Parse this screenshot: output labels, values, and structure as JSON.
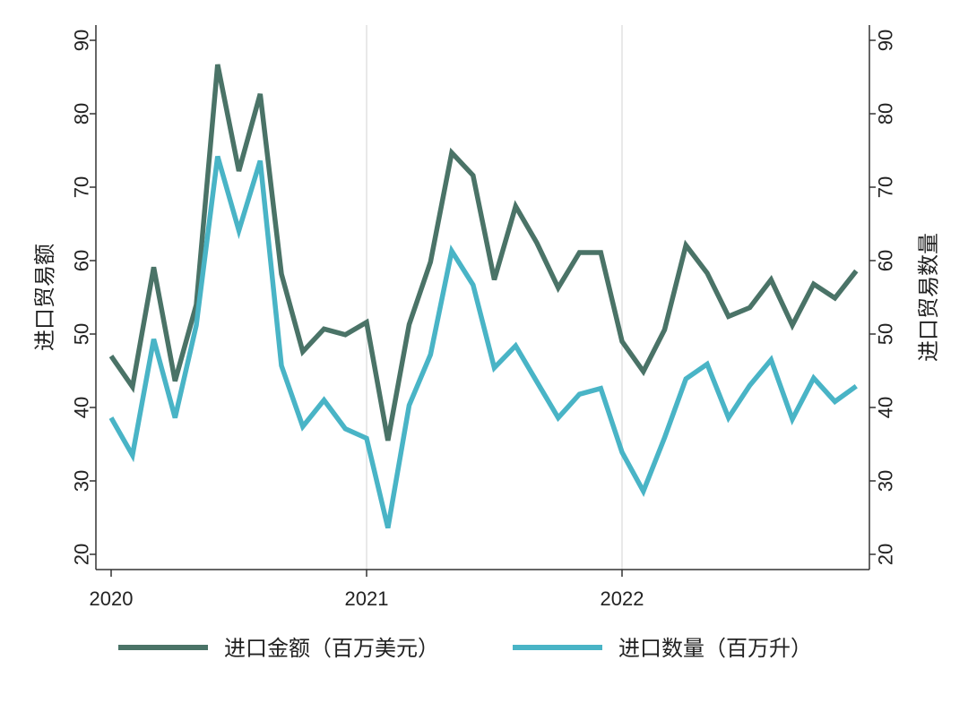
{
  "chart_data": {
    "type": "line",
    "ylabel_left": "进口贸易额",
    "ylabel_right": "进口贸易数量",
    "ylim": [
      20,
      90
    ],
    "yticks": [
      "20",
      "30",
      "40",
      "50",
      "60",
      "70",
      "80",
      "90"
    ],
    "xticks": [
      "2020",
      "2021",
      "2022"
    ],
    "grid": "vertical at year boundaries",
    "legend_position": "bottom",
    "x": [
      "2020-01",
      "2020-02",
      "2020-03",
      "2020-04",
      "2020-05",
      "2020-06",
      "2020-07",
      "2020-08",
      "2020-09",
      "2020-10",
      "2020-11",
      "2020-12",
      "2021-01",
      "2021-02",
      "2021-03",
      "2021-04",
      "2021-05",
      "2021-06",
      "2021-07",
      "2021-08",
      "2021-09",
      "2021-10",
      "2021-11",
      "2021-12",
      "2022-01",
      "2022-02",
      "2022-03",
      "2022-04",
      "2022-05",
      "2022-06",
      "2022-07",
      "2022-08",
      "2022-09",
      "2022-10",
      "2022-11",
      "2022-12"
    ],
    "series": [
      {
        "name": "进口金额（百万美元）",
        "color": "#4a7367",
        "axis": "left",
        "values": [
          47.0,
          42.8,
          59.1,
          43.6,
          54.0,
          86.7,
          72.2,
          82.7,
          58.2,
          47.6,
          50.7,
          49.9,
          51.6,
          35.5,
          51.3,
          59.8,
          74.7,
          71.6,
          57.4,
          67.4,
          62.4,
          56.3,
          61.1,
          61.1,
          49.0,
          44.9,
          50.6,
          62.1,
          58.3,
          52.4,
          53.6,
          57.4,
          51.2,
          56.8,
          54.9,
          58.6
        ]
      },
      {
        "name": "进口数量（百万升）",
        "color": "#49b4c6",
        "axis": "right",
        "values": [
          38.6,
          33.5,
          49.3,
          38.6,
          51.2,
          74.2,
          64.1,
          73.6,
          45.7,
          37.4,
          41.0,
          37.1,
          35.8,
          23.6,
          40.3,
          47.2,
          61.3,
          56.7,
          45.4,
          48.4,
          43.5,
          38.6,
          41.8,
          42.6,
          33.9,
          28.6,
          35.9,
          43.9,
          45.9,
          38.6,
          43.0,
          46.5,
          38.4,
          44.0,
          40.8,
          42.9
        ]
      }
    ]
  }
}
